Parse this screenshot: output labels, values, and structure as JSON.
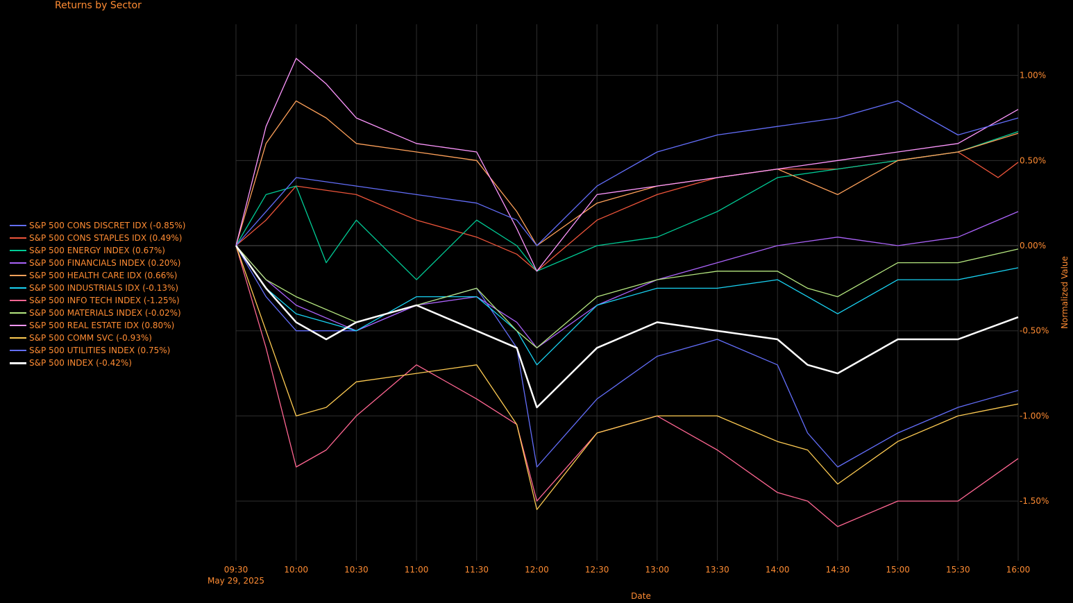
{
  "chart_data": {
    "type": "line",
    "title": "Returns by Sector",
    "xlabel": "Date",
    "ylabel": "Normalized Value",
    "x_start": "09:30",
    "x_end": "16:00",
    "x_ticks": [
      "09:30",
      "10:00",
      "10:30",
      "11:00",
      "11:30",
      "12:00",
      "12:30",
      "13:00",
      "13:30",
      "14:00",
      "14:30",
      "15:00",
      "15:30",
      "16:00"
    ],
    "x_date_label": "May 29, 2025",
    "y_ticks": [
      {
        "value": 1.0,
        "label": "1.00%"
      },
      {
        "value": 0.5,
        "label": "0.50%"
      },
      {
        "value": 0.0,
        "label": "0.00%"
      },
      {
        "value": -0.5,
        "label": "-0.50%"
      },
      {
        "value": -1.0,
        "label": "-1.00%"
      },
      {
        "value": -1.5,
        "label": "-1.50%"
      }
    ],
    "ylim": [
      -1.85,
      1.3
    ],
    "grid": true,
    "legend_position": "left",
    "series": [
      {
        "name": "S&P 500 CONS DISCRET IDX (-0.85%)",
        "color": "#636efa",
        "x": [
          "09:30",
          "09:45",
          "10:00",
          "10:30",
          "11:00",
          "11:30",
          "11:50",
          "12:00",
          "12:30",
          "13:00",
          "13:30",
          "14:00",
          "14:15",
          "14:30",
          "15:00",
          "15:30",
          "16:00"
        ],
        "y": [
          0.0,
          -0.3,
          -0.5,
          -0.5,
          -0.35,
          -0.25,
          -0.6,
          -1.3,
          -0.9,
          -0.65,
          -0.55,
          -0.7,
          -1.1,
          -1.3,
          -1.1,
          -0.95,
          -0.85
        ]
      },
      {
        "name": "S&P 500 CONS STAPLES IDX (0.49%)",
        "color": "#ef553b",
        "x": [
          "09:30",
          "09:45",
          "10:00",
          "10:30",
          "11:00",
          "11:30",
          "11:50",
          "12:00",
          "12:30",
          "13:00",
          "13:30",
          "14:00",
          "14:30",
          "15:00",
          "15:30",
          "15:50",
          "16:00"
        ],
        "y": [
          0.0,
          0.15,
          0.35,
          0.3,
          0.15,
          0.05,
          -0.05,
          -0.15,
          0.15,
          0.3,
          0.4,
          0.45,
          0.45,
          0.5,
          0.55,
          0.4,
          0.49
        ]
      },
      {
        "name": "S&P 500 ENERGY INDEX (0.67%)",
        "color": "#00cc96",
        "x": [
          "09:30",
          "09:45",
          "10:00",
          "10:15",
          "10:30",
          "11:00",
          "11:30",
          "11:50",
          "12:00",
          "12:30",
          "13:00",
          "13:30",
          "14:00",
          "14:30",
          "15:00",
          "15:30",
          "16:00"
        ],
        "y": [
          0.0,
          0.3,
          0.35,
          -0.1,
          0.15,
          -0.2,
          0.15,
          0.0,
          -0.15,
          0.0,
          0.05,
          0.2,
          0.4,
          0.45,
          0.5,
          0.55,
          0.67
        ]
      },
      {
        "name": "S&P 500 FINANCIALS INDEX (0.20%)",
        "color": "#ab63fa",
        "x": [
          "09:30",
          "09:45",
          "10:00",
          "10:30",
          "11:00",
          "11:30",
          "11:50",
          "12:00",
          "12:30",
          "13:00",
          "13:30",
          "14:00",
          "14:30",
          "15:00",
          "15:30",
          "16:00"
        ],
        "y": [
          0.0,
          -0.2,
          -0.35,
          -0.5,
          -0.35,
          -0.3,
          -0.45,
          -0.6,
          -0.35,
          -0.2,
          -0.1,
          0.0,
          0.05,
          0.0,
          0.05,
          0.2
        ]
      },
      {
        "name": "S&P 500 HEALTH CARE IDX (0.66%)",
        "color": "#ffa15a",
        "x": [
          "09:30",
          "09:45",
          "10:00",
          "10:15",
          "10:30",
          "11:00",
          "11:30",
          "11:50",
          "12:00",
          "12:30",
          "13:00",
          "13:30",
          "14:00",
          "14:30",
          "15:00",
          "15:30",
          "16:00"
        ],
        "y": [
          0.0,
          0.6,
          0.85,
          0.75,
          0.6,
          0.55,
          0.5,
          0.2,
          0.0,
          0.25,
          0.35,
          0.4,
          0.45,
          0.3,
          0.5,
          0.55,
          0.66
        ]
      },
      {
        "name": "S&P 500 INDUSTRIALS IDX (-0.13%)",
        "color": "#19d3f3",
        "x": [
          "09:30",
          "09:45",
          "10:00",
          "10:30",
          "11:00",
          "11:30",
          "11:50",
          "12:00",
          "12:30",
          "13:00",
          "13:30",
          "14:00",
          "14:15",
          "14:30",
          "15:00",
          "15:30",
          "16:00"
        ],
        "y": [
          0.0,
          -0.25,
          -0.4,
          -0.5,
          -0.3,
          -0.3,
          -0.5,
          -0.7,
          -0.35,
          -0.25,
          -0.25,
          -0.2,
          -0.3,
          -0.4,
          -0.2,
          -0.2,
          -0.13
        ]
      },
      {
        "name": "S&P 500 INFO TECH INDEX (-1.25%)",
        "color": "#ff6692",
        "x": [
          "09:30",
          "09:45",
          "10:00",
          "10:15",
          "10:30",
          "11:00",
          "11:30",
          "11:50",
          "12:00",
          "12:30",
          "13:00",
          "13:30",
          "14:00",
          "14:15",
          "14:30",
          "15:00",
          "15:30",
          "16:00"
        ],
        "y": [
          0.0,
          -0.6,
          -1.3,
          -1.2,
          -1.0,
          -0.7,
          -0.9,
          -1.05,
          -1.5,
          -1.1,
          -1.0,
          -1.2,
          -1.45,
          -1.5,
          -1.65,
          -1.5,
          -1.5,
          -1.25
        ]
      },
      {
        "name": "S&P 500 MATERIALS INDEX (-0.02%)",
        "color": "#b6e880",
        "x": [
          "09:30",
          "09:45",
          "10:00",
          "10:30",
          "11:00",
          "11:30",
          "11:50",
          "12:00",
          "12:30",
          "13:00",
          "13:30",
          "14:00",
          "14:15",
          "14:30",
          "15:00",
          "15:30",
          "16:00"
        ],
        "y": [
          0.0,
          -0.2,
          -0.3,
          -0.45,
          -0.35,
          -0.25,
          -0.5,
          -0.6,
          -0.3,
          -0.2,
          -0.15,
          -0.15,
          -0.25,
          -0.3,
          -0.1,
          -0.1,
          -0.02
        ]
      },
      {
        "name": "S&P 500 REAL ESTATE IDX (0.80%)",
        "color": "#ff97ff",
        "x": [
          "09:30",
          "09:45",
          "10:00",
          "10:15",
          "10:30",
          "11:00",
          "11:30",
          "11:50",
          "12:00",
          "12:30",
          "13:00",
          "13:30",
          "14:00",
          "14:30",
          "15:00",
          "15:30",
          "16:00"
        ],
        "y": [
          0.0,
          0.7,
          1.1,
          0.95,
          0.75,
          0.6,
          0.55,
          0.1,
          -0.15,
          0.3,
          0.35,
          0.4,
          0.45,
          0.5,
          0.55,
          0.6,
          0.8
        ]
      },
      {
        "name": "S&P 500 COMM SVC (-0.93%)",
        "color": "#fecb52",
        "x": [
          "09:30",
          "09:45",
          "10:00",
          "10:15",
          "10:30",
          "11:00",
          "11:30",
          "11:50",
          "12:00",
          "12:30",
          "13:00",
          "13:30",
          "14:00",
          "14:15",
          "14:30",
          "15:00",
          "15:30",
          "16:00"
        ],
        "y": [
          0.0,
          -0.5,
          -1.0,
          -0.95,
          -0.8,
          -0.75,
          -0.7,
          -1.05,
          -1.55,
          -1.1,
          -1.0,
          -1.0,
          -1.15,
          -1.2,
          -1.4,
          -1.15,
          -1.0,
          -0.93
        ]
      },
      {
        "name": "S&P 500 UTILITIES INDEX (0.75%)",
        "color": "#636efa",
        "x": [
          "09:30",
          "09:45",
          "10:00",
          "10:30",
          "11:00",
          "11:30",
          "11:50",
          "12:00",
          "12:30",
          "13:00",
          "13:30",
          "14:00",
          "14:30",
          "15:00",
          "15:30",
          "16:00"
        ],
        "y": [
          0.0,
          0.2,
          0.4,
          0.35,
          0.3,
          0.25,
          0.15,
          0.0,
          0.35,
          0.55,
          0.65,
          0.7,
          0.75,
          0.85,
          0.65,
          0.75
        ]
      },
      {
        "name": "S&P 500 INDEX (-0.42%)",
        "color": "#ffffff",
        "bold": true,
        "x": [
          "09:30",
          "09:45",
          "10:00",
          "10:15",
          "10:30",
          "11:00",
          "11:30",
          "11:50",
          "12:00",
          "12:30",
          "13:00",
          "13:30",
          "14:00",
          "14:15",
          "14:30",
          "15:00",
          "15:30",
          "16:00"
        ],
        "y": [
          0.0,
          -0.25,
          -0.45,
          -0.55,
          -0.45,
          -0.35,
          -0.5,
          -0.6,
          -0.95,
          -0.6,
          -0.45,
          -0.5,
          -0.55,
          -0.7,
          -0.75,
          -0.55,
          -0.55,
          -0.42
        ]
      }
    ]
  }
}
